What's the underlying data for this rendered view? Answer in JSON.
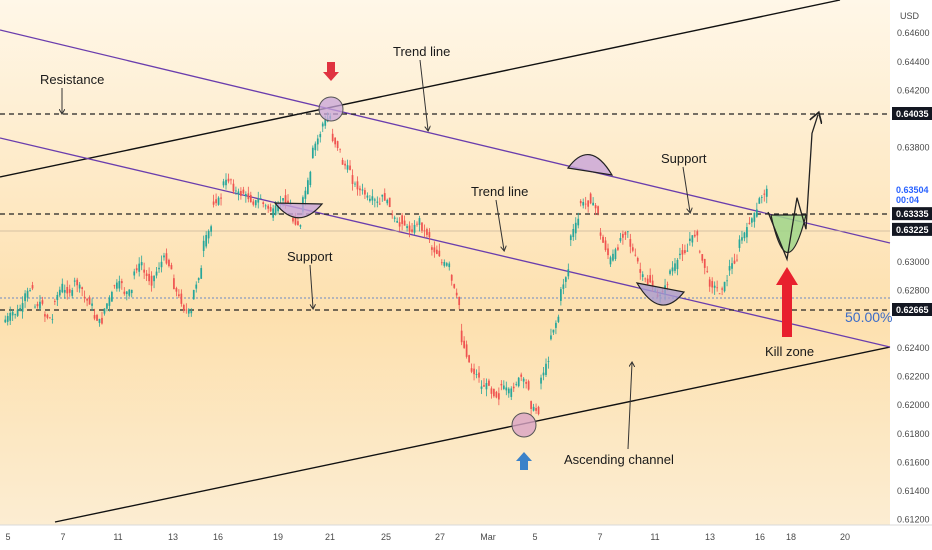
{
  "chart_data": {
    "type": "candlestick",
    "currency": "USD",
    "y_ticks": [
      "0.64600",
      "0.64400",
      "0.64200",
      "0.64035",
      "0.63800",
      "0.63504",
      "0.63335",
      "0.63225",
      "0.63000",
      "0.62800",
      "0.62665",
      "0.62400",
      "0.62200",
      "0.62000",
      "0.61800",
      "0.61600",
      "0.61400",
      "0.61200"
    ],
    "x_ticks": [
      "5",
      "7",
      "11",
      "13",
      "16",
      "19",
      "21",
      "25",
      "27",
      "Mar",
      "5",
      "7",
      "11",
      "13",
      "16",
      "18",
      "20"
    ],
    "price_boxes": [
      {
        "value": "0.64035",
        "style": "dark"
      },
      {
        "value": "0.63504",
        "sub": "00:04",
        "style": "blue"
      },
      {
        "value": "0.63335",
        "style": "dark"
      },
      {
        "value": "0.63225",
        "style": "dark"
      },
      {
        "value": "0.62665",
        "style": "dark"
      }
    ],
    "levels": {
      "resistance": 0.64035,
      "mid": 0.63335,
      "support": 0.62665,
      "current": 0.63504,
      "fib50": 0.6275
    },
    "fib_label": "50.00%",
    "annotations": {
      "resistance": "Resistance",
      "trend_line_1": "Trend line",
      "support_1": "Support",
      "trend_line_2": "Trend line",
      "support_2": "Support",
      "ascending_channel": "Ascending channel",
      "kill_zone": "Kill zone"
    },
    "price_path": [
      [
        0.6258,
        0.6265
      ],
      [
        0.6262,
        0.627
      ],
      [
        0.6275,
        0.6283
      ],
      [
        0.6268,
        0.6272
      ],
      [
        0.6263,
        0.626
      ],
      [
        0.627,
        0.6284
      ],
      [
        0.628,
        0.6279
      ],
      [
        0.6288,
        0.6281
      ],
      [
        0.6276,
        0.627
      ],
      [
        0.6262,
        0.6258
      ],
      [
        0.6264,
        0.6278
      ],
      [
        0.6283,
        0.6286
      ],
      [
        0.6278,
        0.628
      ],
      [
        0.6291,
        0.63
      ],
      [
        0.6295,
        0.6285
      ],
      [
        0.6287,
        0.63
      ],
      [
        0.6306,
        0.6295
      ],
      [
        0.6286,
        0.6272
      ],
      [
        0.6268,
        0.6265
      ],
      [
        0.6275,
        0.6295
      ],
      [
        0.631,
        0.6325
      ],
      [
        0.634,
        0.6345
      ],
      [
        0.6355,
        0.6358
      ],
      [
        0.6352,
        0.6347
      ],
      [
        0.635,
        0.6343
      ],
      [
        0.634,
        0.6345
      ],
      [
        0.6342,
        0.6336
      ],
      [
        0.6334,
        0.6342
      ],
      [
        0.6345,
        0.634
      ],
      [
        0.633,
        0.6325
      ],
      [
        0.6338,
        0.6362
      ],
      [
        0.6375,
        0.639
      ],
      [
        0.6395,
        0.6402
      ],
      [
        0.6388,
        0.6378
      ],
      [
        0.637,
        0.6365
      ],
      [
        0.6358,
        0.635
      ],
      [
        0.6352,
        0.6343
      ],
      [
        0.6346,
        0.634
      ],
      [
        0.6348,
        0.634
      ],
      [
        0.6335,
        0.6325
      ],
      [
        0.633,
        0.6322
      ],
      [
        0.632,
        0.633
      ],
      [
        0.6325,
        0.6318
      ],
      [
        0.631,
        0.6305
      ],
      [
        0.63,
        0.6298
      ],
      [
        0.6292,
        0.627
      ],
      [
        0.625,
        0.623
      ],
      [
        0.6225,
        0.622
      ],
      [
        0.6212,
        0.6215
      ],
      [
        0.621,
        0.6205
      ],
      [
        0.6215,
        0.621
      ],
      [
        0.6208,
        0.6218
      ],
      [
        0.6222,
        0.6212
      ],
      [
        0.62,
        0.6195
      ],
      [
        0.6215,
        0.6232
      ],
      [
        0.6245,
        0.6262
      ],
      [
        0.6275,
        0.6295
      ],
      [
        0.6315,
        0.633
      ],
      [
        0.6342,
        0.634
      ],
      [
        0.6345,
        0.6335
      ],
      [
        0.6322,
        0.6305
      ],
      [
        0.63,
        0.631
      ],
      [
        0.6315,
        0.6322
      ],
      [
        0.6315,
        0.63
      ],
      [
        0.6295,
        0.6285
      ],
      [
        0.629,
        0.6275
      ],
      [
        0.6275,
        0.6285
      ],
      [
        0.6292,
        0.63
      ],
      [
        0.6305,
        0.6308
      ],
      [
        0.6315,
        0.632
      ],
      [
        0.631,
        0.6292
      ],
      [
        0.6285,
        0.6282
      ],
      [
        0.6276,
        0.6288
      ],
      [
        0.6295,
        0.6302
      ],
      [
        0.6312,
        0.6323
      ],
      [
        0.6325,
        0.6336
      ],
      [
        0.6342,
        0.635
      ]
    ],
    "projection": [
      0.6335,
      0.6302,
      0.6345,
      0.6323,
      0.639,
      0.6403
    ]
  }
}
